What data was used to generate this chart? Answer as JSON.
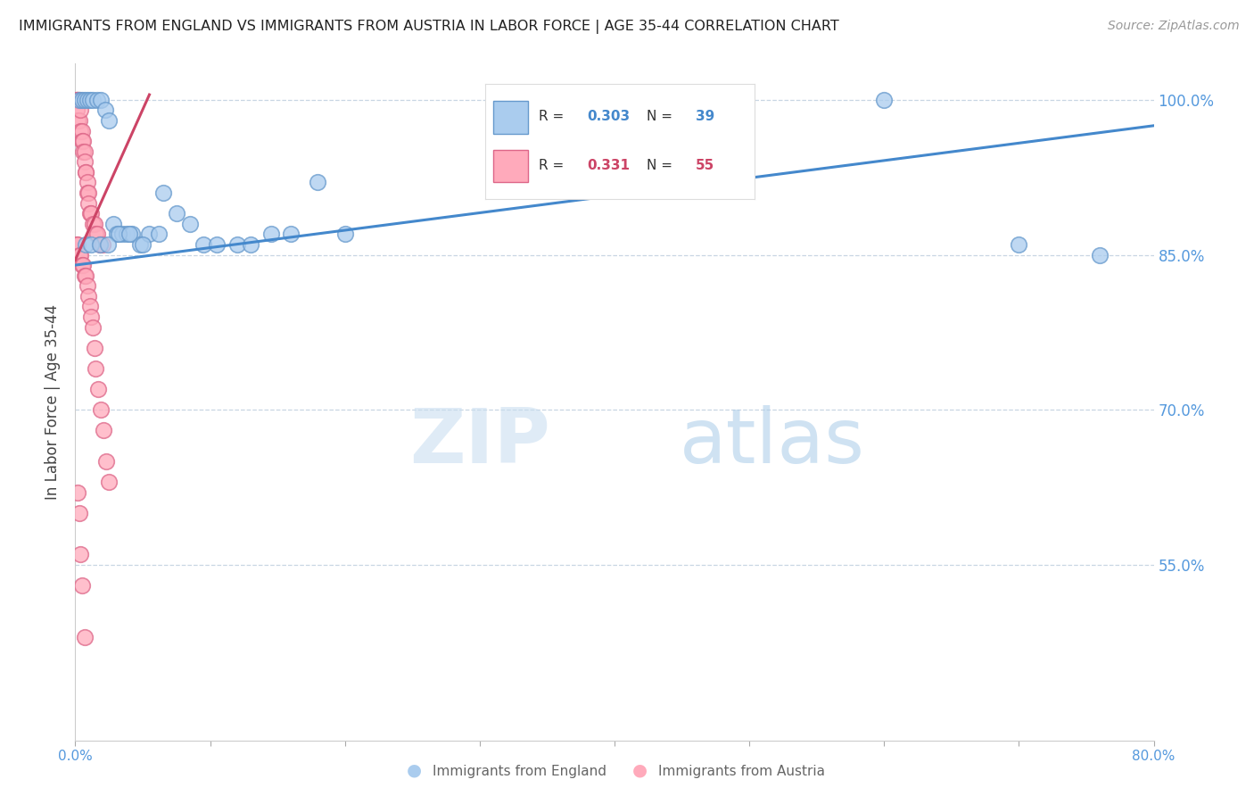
{
  "title": "IMMIGRANTS FROM ENGLAND VS IMMIGRANTS FROM AUSTRIA IN LABOR FORCE | AGE 35-44 CORRELATION CHART",
  "source": "Source: ZipAtlas.com",
  "ylabel": "In Labor Force | Age 35-44",
  "legend_england": "Immigrants from England",
  "legend_austria": "Immigrants from Austria",
  "R_england": 0.303,
  "N_england": 39,
  "R_austria": 0.331,
  "N_austria": 55,
  "color_england_fill": "#AACCEE",
  "color_england_edge": "#6699CC",
  "color_austria_fill": "#FFAABB",
  "color_austria_edge": "#DD6688",
  "color_line_england": "#4488CC",
  "color_line_austria": "#CC4466",
  "color_tick_labels": "#5599DD",
  "color_grid": "#BBCCDD",
  "x_min": 0.0,
  "x_max": 0.8,
  "y_min": 0.38,
  "y_max": 1.035,
  "yticks": [
    0.55,
    0.7,
    0.85,
    1.0
  ],
  "ytick_labels": [
    "55.0%",
    "70.0%",
    "85.0%",
    "100.0%"
  ],
  "xticks": [
    0.0,
    0.1,
    0.2,
    0.3,
    0.4,
    0.5,
    0.6,
    0.7,
    0.8
  ],
  "xtick_labels": [
    "0.0%",
    "",
    "",
    "",
    "",
    "",
    "",
    "",
    "80.0%"
  ],
  "eng_line_x": [
    0.0,
    0.8
  ],
  "eng_line_y": [
    0.84,
    0.975
  ],
  "aut_line_x": [
    0.0,
    0.055
  ],
  "aut_line_y": [
    0.845,
    1.005
  ],
  "watermark_zip": "ZIP",
  "watermark_atlas": "atlas",
  "background_color": "#FFFFFF",
  "england_x": [
    0.003,
    0.005,
    0.007,
    0.009,
    0.011,
    0.013,
    0.016,
    0.019,
    0.022,
    0.025,
    0.028,
    0.031,
    0.035,
    0.038,
    0.042,
    0.048,
    0.055,
    0.065,
    0.075,
    0.085,
    0.095,
    0.105,
    0.12,
    0.13,
    0.145,
    0.16,
    0.18,
    0.2,
    0.6,
    0.7,
    0.76,
    0.008,
    0.012,
    0.018,
    0.024,
    0.032,
    0.04,
    0.05,
    0.062
  ],
  "england_y": [
    1.0,
    1.0,
    1.0,
    1.0,
    1.0,
    1.0,
    1.0,
    1.0,
    0.99,
    0.98,
    0.88,
    0.87,
    0.87,
    0.87,
    0.87,
    0.86,
    0.87,
    0.91,
    0.89,
    0.88,
    0.86,
    0.86,
    0.86,
    0.86,
    0.87,
    0.87,
    0.92,
    0.87,
    1.0,
    0.86,
    0.85,
    0.86,
    0.86,
    0.86,
    0.86,
    0.87,
    0.87,
    0.86,
    0.87
  ],
  "austria_x": [
    0.001,
    0.001,
    0.001,
    0.002,
    0.002,
    0.002,
    0.003,
    0.003,
    0.004,
    0.004,
    0.005,
    0.005,
    0.006,
    0.006,
    0.007,
    0.007,
    0.008,
    0.008,
    0.009,
    0.009,
    0.01,
    0.01,
    0.011,
    0.012,
    0.013,
    0.014,
    0.015,
    0.016,
    0.018,
    0.02,
    0.001,
    0.002,
    0.003,
    0.004,
    0.005,
    0.006,
    0.007,
    0.008,
    0.009,
    0.01,
    0.011,
    0.012,
    0.013,
    0.014,
    0.015,
    0.017,
    0.019,
    0.021,
    0.023,
    0.025,
    0.002,
    0.003,
    0.004,
    0.005,
    0.007
  ],
  "austria_y": [
    1.0,
    1.0,
    0.99,
    1.0,
    1.0,
    0.98,
    1.0,
    0.98,
    0.99,
    0.97,
    0.97,
    0.96,
    0.96,
    0.95,
    0.95,
    0.94,
    0.93,
    0.93,
    0.92,
    0.91,
    0.91,
    0.9,
    0.89,
    0.89,
    0.88,
    0.88,
    0.87,
    0.87,
    0.86,
    0.86,
    0.86,
    0.86,
    0.85,
    0.85,
    0.84,
    0.84,
    0.83,
    0.83,
    0.82,
    0.81,
    0.8,
    0.79,
    0.78,
    0.76,
    0.74,
    0.72,
    0.7,
    0.68,
    0.65,
    0.63,
    0.62,
    0.6,
    0.56,
    0.53,
    0.48
  ]
}
